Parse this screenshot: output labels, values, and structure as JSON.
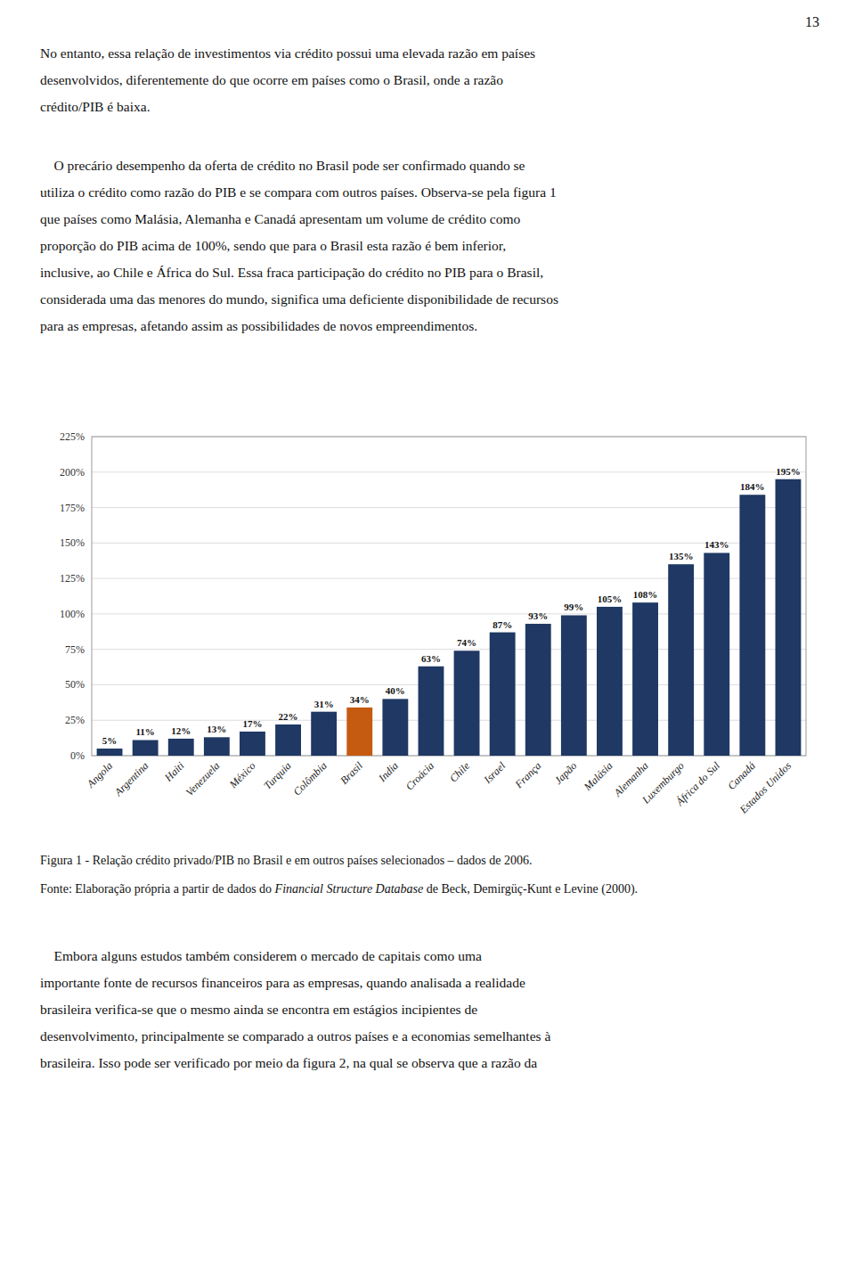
{
  "page_number": "13",
  "text_before": [
    [
      "No entanto, essa relação de investimentos via crédito possui uma elevada razão em países",
      "desenvolvidos, diferentemente do que ocorre em países como o Brasil, onde a razão",
      "crédito/PIB é baixa."
    ],
    [
      "    O precário desempenho da oferta de crédito no Brasil pode ser confirmado quando se",
      "utiliza o crédito como razão do PIB e se compara com outros países. Observa-se pela figura 1",
      "que países como Malásia, Alemanha e Canadá apresentam um volume de crédito como",
      "proporção do PIB acima de 100%, sendo que para o Brasil esta razão é bem inferior,",
      "inclusive, ao Chile e África do Sul. Essa fraca participação do crédito no PIB para o Brasil,",
      "considerada uma das menores do mundo, significa uma deficiente disponibilidade de recursos",
      "para as empresas, afetando assim as possibilidades de novos empreendimentos."
    ]
  ],
  "chart_data": {
    "type": "bar",
    "title": "Figura 1 - Relação crédito privado/PIB no Brasil e em outros países selecionados – dados de 2006.",
    "categories": [
      "Angola",
      "Argentina",
      "Haiti",
      "Venezuela",
      "México",
      "Turquia",
      "Colômbia",
      "Brasil",
      "India",
      "Croácia",
      "Chile",
      "Israel",
      "França",
      "Japão",
      "Malásia",
      "Alemanha",
      "Luxemburgo",
      "África do Sul",
      "Canadá",
      "Estados Unidos"
    ],
    "values": [
      5,
      11,
      12,
      13,
      17,
      22,
      31,
      34,
      40,
      63,
      74,
      87,
      93,
      99,
      105,
      108,
      135,
      143,
      184,
      195
    ],
    "value_labels": [
      "5%",
      "11%",
      "12%",
      "13%",
      "17%",
      "22%",
      "31%",
      "34%",
      "40%",
      "63%",
      "74%",
      "87%",
      "93%",
      "99%",
      "105%",
      "108%",
      "135%",
      "143%",
      "184%",
      "195%"
    ],
    "colors": [
      "#1f3864",
      "#1f3864",
      "#1f3864",
      "#1f3864",
      "#1f3864",
      "#1f3864",
      "#1f3864",
      "#c55a11",
      "#1f3864",
      "#1f3864",
      "#1f3864",
      "#1f3864",
      "#1f3864",
      "#1f3864",
      "#1f3864",
      "#1f3864",
      "#1f3864",
      "#1f3864",
      "#1f3864",
      "#1f3864"
    ],
    "ylim": [
      0,
      225
    ],
    "yticks": [
      {
        "value": 0,
        "label": "0%"
      },
      {
        "value": 25,
        "label": "25%"
      },
      {
        "value": 50,
        "label": "50%"
      },
      {
        "value": 75,
        "label": "75%"
      },
      {
        "value": 100,
        "label": "100%"
      },
      {
        "value": 125,
        "label": "125%"
      },
      {
        "value": 150,
        "label": "150%"
      },
      {
        "value": 175,
        "label": "175%"
      },
      {
        "value": 200,
        "label": "200%"
      },
      {
        "value": 225,
        "label": "225%"
      }
    ],
    "grid": true,
    "data_labels": true
  },
  "source": {
    "before": "Fonte: Elaboração própria a partir de dados do ",
    "italic": "Financial Structure Database",
    "after": " de Beck, Demirgüç-Kunt e Levine (2000)."
  },
  "text_after": [
    [
      "    Embora alguns estudos também considerem o mercado de capitais como uma",
      "importante fonte de recursos financeiros para as empresas, quando analisada a realidade",
      "brasileira verifica-se que o mesmo ainda se encontra em estágios incipientes de",
      "desenvolvimento, principalmente se comparado a outros países e a economias semelhantes à",
      "brasileira. Isso pode ser verificado por meio da figura 2, na qual se observa que a razão da"
    ]
  ]
}
